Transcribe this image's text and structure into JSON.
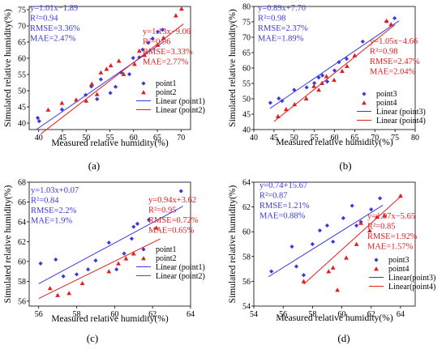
{
  "colors": {
    "series_a": "#3a3adf",
    "series_b": "#e02020"
  },
  "chart_data": [
    {
      "type": "scatter",
      "panel": "(a)",
      "xlabel": "Measured relative humidity(%)",
      "ylabel": "Simulated relative humidity(%)",
      "xlim": [
        38,
        72
      ],
      "ylim": [
        38,
        76
      ],
      "xticks": [
        40,
        45,
        50,
        55,
        60,
        65,
        70
      ],
      "yticks": [
        40,
        45,
        50,
        55,
        60,
        65,
        70,
        75
      ],
      "legend": [
        "point1",
        "point2",
        "Linear (point1)",
        "Linear (point2)"
      ],
      "legend_position": "lower-right",
      "series": [
        {
          "name": "point1",
          "marker": "diamond",
          "color": "#3a3adf",
          "x": [
            39.8,
            40.1,
            44.9,
            49.9,
            51.1,
            52.3,
            53.1,
            55.1,
            56.2,
            57.4,
            59.1,
            59.9,
            61.2,
            61.9,
            63.1,
            64.0,
            65.1,
            66.1
          ],
          "y": [
            41.6,
            40.6,
            44.2,
            48.7,
            51.3,
            47.4,
            53.5,
            49.3,
            51.2,
            55.6,
            55.1,
            60.1,
            60.3,
            62.7,
            64.8,
            66.1,
            68.2,
            68.8
          ],
          "fit": {
            "slope": 1.01,
            "intercept": -1.89,
            "x_range": [
              39.5,
              66.5
            ]
          }
        },
        {
          "name": "point2",
          "marker": "triangle",
          "color": "#e02020",
          "x": [
            42.0,
            44.9,
            47.9,
            50.0,
            51.2,
            52.3,
            53.1,
            54.3,
            55.2,
            56.9,
            57.9,
            60.2,
            61.2,
            62.3,
            65.1,
            66.3,
            68.9,
            70.1
          ],
          "y": [
            44.1,
            46.2,
            47.2,
            46.9,
            52.1,
            48.9,
            55.6,
            56.7,
            57.8,
            59.2,
            55.1,
            58.2,
            62.3,
            61.0,
            64.1,
            66.3,
            73.2,
            75.3
          ],
          "fit": {
            "slope": 1.13,
            "intercept": -9.06,
            "x_range": [
              40.5,
              70.5
            ]
          }
        }
      ],
      "annotations": [
        {
          "series": 0,
          "lines": [
            "y=1.01x−1.89",
            "R²=0.94",
            "RMSE=3.36%",
            "MAE=2.47%"
          ]
        },
        {
          "series": 1,
          "lines": [
            "y=1.13x−9.06",
            "R²=0.96",
            "RMSE=3.33%",
            "MAE=2.77%"
          ]
        }
      ]
    },
    {
      "type": "scatter",
      "panel": "(b)",
      "xlabel": "Measured relative humidity(%)",
      "ylabel": "Simulated relative humidity(%)",
      "xlim": [
        40,
        80
      ],
      "ylim": [
        40,
        80
      ],
      "xticks": [
        40,
        45,
        50,
        55,
        60,
        65,
        70,
        75,
        80
      ],
      "yticks": [
        40,
        45,
        50,
        55,
        60,
        65,
        70,
        75,
        80
      ],
      "legend": [
        "point3",
        "point4",
        "Linear (point3)",
        "Linear (point4)"
      ],
      "legend_position": "lower-right",
      "series": [
        {
          "name": "point3",
          "marker": "diamond",
          "color": "#3a3adf",
          "x": [
            44.1,
            46.2,
            47.0,
            50.0,
            53.1,
            55.0,
            56.1,
            57.0,
            58.2,
            60.0,
            61.1,
            63.0,
            67.0,
            72.9,
            74.9
          ],
          "y": [
            48.7,
            50.1,
            49.3,
            52.9,
            53.7,
            55.1,
            56.9,
            57.6,
            55.6,
            59.2,
            61.9,
            63.0,
            68.6,
            75.2,
            76.2
          ],
          "fit": {
            "slope": 0.89,
            "intercept": 7.7,
            "x_range": [
              44,
              76
            ]
          }
        },
        {
          "name": "point4",
          "marker": "triangle",
          "color": "#e02020",
          "x": [
            46.0,
            48.0,
            50.1,
            53.0,
            54.9,
            56.1,
            56.9,
            58.0,
            59.9,
            61.9,
            63.1,
            65.0,
            72.9,
            74.0
          ],
          "y": [
            44.3,
            46.6,
            48.2,
            50.1,
            54.1,
            52.9,
            55.1,
            57.3,
            56.1,
            59.0,
            60.6,
            64.1,
            75.3,
            74.2
          ],
          "fit": {
            "slope": 1.05,
            "intercept": -4.66,
            "x_range": [
              45,
              75
            ]
          }
        }
      ],
      "annotations": [
        {
          "series": 0,
          "lines": [
            "y=0.89x+7.70",
            "R²=0.98",
            "RMSE=2.37%",
            "MAE=1.89%"
          ]
        },
        {
          "series": 1,
          "lines": [
            "y=1.05x−4.66",
            "R²=0.98",
            "RMSE=2.47%",
            "MAE=2.04%"
          ]
        }
      ]
    },
    {
      "type": "scatter",
      "panel": "(c)",
      "xlabel": "Measured relative humidity(%)",
      "ylabel": "Simulated relative humidity(%)",
      "xlim": [
        55.5,
        64
      ],
      "ylim": [
        55.5,
        68
      ],
      "xticks": [
        56,
        58,
        60,
        62,
        64
      ],
      "yticks": [
        56,
        58,
        60,
        62,
        64,
        66,
        68
      ],
      "legend": [
        "point1",
        "point2",
        "Linear (point1)",
        "Linear (point2)"
      ],
      "legend_position": "lower-right",
      "series": [
        {
          "name": "point1",
          "marker": "diamond",
          "color": "#3a3adf",
          "x": [
            56.1,
            56.9,
            57.3,
            58.0,
            58.6,
            59.0,
            59.7,
            60.1,
            60.5,
            60.9,
            61.0,
            61.2,
            61.8,
            63.5
          ],
          "y": [
            59.8,
            60.2,
            58.5,
            58.7,
            59.2,
            60.1,
            61.9,
            59.2,
            60.8,
            62.3,
            63.5,
            63.8,
            64.2,
            67.1
          ],
          "fit": {
            "slope": 1.03,
            "intercept": 0.07,
            "x_range": [
              56,
              63.6
            ]
          }
        },
        {
          "name": "point2",
          "marker": "triangle",
          "color": "#e02020",
          "x": [
            56.6,
            57.0,
            57.6,
            58.3,
            59.7,
            60.2,
            60.6,
            61.0,
            62.2
          ],
          "y": [
            57.3,
            56.6,
            56.8,
            57.8,
            59.0,
            59.8,
            60.3,
            60.8,
            63.4
          ],
          "fit": {
            "slope": 0.94,
            "intercept": 3.62,
            "x_range": [
              56,
              62.4
            ]
          }
        }
      ],
      "annotations": [
        {
          "series": 0,
          "lines": [
            "y=1.03x+0.07",
            "R²=0.84",
            "RMSE=2.2%",
            "MAE=1.9%"
          ]
        },
        {
          "series": 1,
          "lines": [
            "y=0.94x+3.62",
            "R²=0.95",
            "RMSE=0.72%",
            "MAE=0.65%"
          ]
        }
      ]
    },
    {
      "type": "scatter",
      "panel": "(d)",
      "xlabel": "Measured relative humidity(%)",
      "ylabel": "Simulated relative humidity(%)",
      "xlim": [
        54,
        65
      ],
      "ylim": [
        54,
        64
      ],
      "xticks": [
        54,
        56,
        58,
        60,
        62,
        64
      ],
      "yticks": [
        54,
        56,
        58,
        60,
        62,
        64
      ],
      "legend": [
        "point3",
        "point4",
        "Linear(point3)",
        "Linear(point4)"
      ],
      "legend_position": "lower-right",
      "series": [
        {
          "name": "point3",
          "marker": "diamond",
          "color": "#3a3adf",
          "x": [
            55.2,
            56.6,
            56.9,
            57.4,
            58.0,
            58.5,
            59.0,
            59.4,
            60.1,
            60.7,
            61.0,
            61.3,
            62.0,
            62.6
          ],
          "y": [
            56.8,
            58.8,
            57.2,
            56.5,
            59.0,
            60.1,
            60.5,
            59.2,
            61.1,
            62.1,
            60.5,
            60.8,
            61.8,
            62.7
          ],
          "fit": {
            "slope": 0.74,
            "intercept": 15.67,
            "x_range": [
              55,
              62.8
            ]
          }
        },
        {
          "name": "point4",
          "marker": "triangle",
          "color": "#e02020",
          "x": [
            57.4,
            59.1,
            59.4,
            59.7,
            60.3,
            61.0,
            61.3,
            61.9,
            62.4,
            62.9,
            64.0
          ],
          "y": [
            56.0,
            56.8,
            57.1,
            55.3,
            57.9,
            59.0,
            60.7,
            60.1,
            61.2,
            61.3,
            62.9
          ],
          "fit": {
            "slope": 1.07,
            "intercept": -5.65,
            "x_range": [
              57.4,
              64.1
            ]
          }
        }
      ],
      "annotations": [
        {
          "series": 0,
          "lines": [
            "y=0.74+15.67",
            "R²=0.87",
            "RMSE=1.21%",
            "MAE=0.88%"
          ]
        },
        {
          "series": 1,
          "lines": [
            "y=1.07x−5.65",
            "R²=0.85",
            "RMSE=1.92%",
            "MAE=1.57%"
          ]
        }
      ]
    }
  ]
}
